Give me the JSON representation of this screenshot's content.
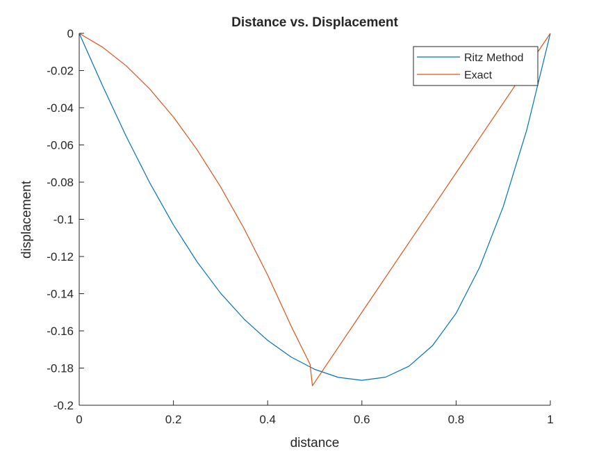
{
  "chart_data": {
    "type": "line",
    "title": "Distance vs. Displacement",
    "xlabel": "distance",
    "ylabel": "displacement",
    "xlim": [
      0,
      1
    ],
    "ylim": [
      -0.2,
      0
    ],
    "xticks": [
      0,
      0.2,
      0.4,
      0.6,
      0.8,
      1
    ],
    "xtick_labels": [
      "0",
      "0.2",
      "0.4",
      "0.6",
      "0.8",
      "1"
    ],
    "yticks": [
      0,
      -0.02,
      -0.04,
      -0.06,
      -0.08,
      -0.1,
      -0.12,
      -0.14,
      -0.16,
      -0.18,
      -0.2
    ],
    "ytick_labels": [
      "0",
      "-0.02",
      "-0.04",
      "-0.06",
      "-0.08",
      "-0.1",
      "-0.12",
      "-0.14",
      "-0.16",
      "-0.18",
      "-0.2"
    ],
    "grid": false,
    "legend_position": "top-right",
    "series": [
      {
        "name": "Ritz Method",
        "color": "#0072BD",
        "x": [
          0,
          0.05,
          0.1,
          0.15,
          0.2,
          0.25,
          0.3,
          0.35,
          0.4,
          0.45,
          0.5,
          0.55,
          0.6,
          0.65,
          0.7,
          0.75,
          0.8,
          0.85,
          0.9,
          0.95,
          1
        ],
        "y": [
          0,
          -0.0284,
          -0.0555,
          -0.0805,
          -0.103,
          -0.1228,
          -0.1397,
          -0.1537,
          -0.1651,
          -0.1741,
          -0.1807,
          -0.185,
          -0.1866,
          -0.1849,
          -0.179,
          -0.1679,
          -0.1505,
          -0.1258,
          -0.0932,
          -0.0519,
          0
        ]
      },
      {
        "name": "Exact",
        "color": "#D95319",
        "x": [
          0,
          0.05,
          0.1,
          0.15,
          0.2,
          0.25,
          0.3,
          0.35,
          0.4,
          0.45,
          0.49,
          0.495,
          0.6,
          0.7,
          0.8,
          0.9,
          0.96,
          1
        ],
        "y": [
          0,
          -0.0075,
          -0.0175,
          -0.03,
          -0.045,
          -0.0625,
          -0.0825,
          -0.105,
          -0.13,
          -0.1575,
          -0.178,
          -0.1895,
          -0.15,
          -0.1125,
          -0.075,
          -0.0375,
          -0.015,
          0
        ]
      }
    ]
  }
}
